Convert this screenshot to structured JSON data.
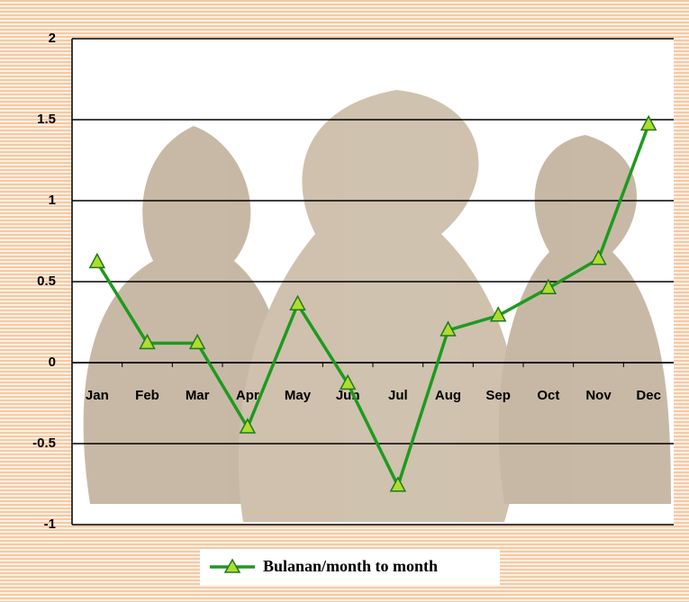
{
  "chart_data": {
    "type": "line",
    "categories": [
      "Jan",
      "Feb",
      "Mar",
      "Apr",
      "May",
      "Jun",
      "Jul",
      "Aug",
      "Sep",
      "Oct",
      "Nov",
      "Dec"
    ],
    "series": [
      {
        "name": "Bulanan/month to month",
        "color": "#1e9a1e",
        "values": [
          0.62,
          0.12,
          0.12,
          -0.4,
          0.36,
          -0.13,
          -0.76,
          0.2,
          0.29,
          0.46,
          0.64,
          1.47
        ]
      }
    ],
    "ylim": [
      -1,
      2
    ],
    "yticks": [
      2,
      1.5,
      1,
      0.5,
      0,
      -0.5,
      -1
    ],
    "grid": true
  }
}
